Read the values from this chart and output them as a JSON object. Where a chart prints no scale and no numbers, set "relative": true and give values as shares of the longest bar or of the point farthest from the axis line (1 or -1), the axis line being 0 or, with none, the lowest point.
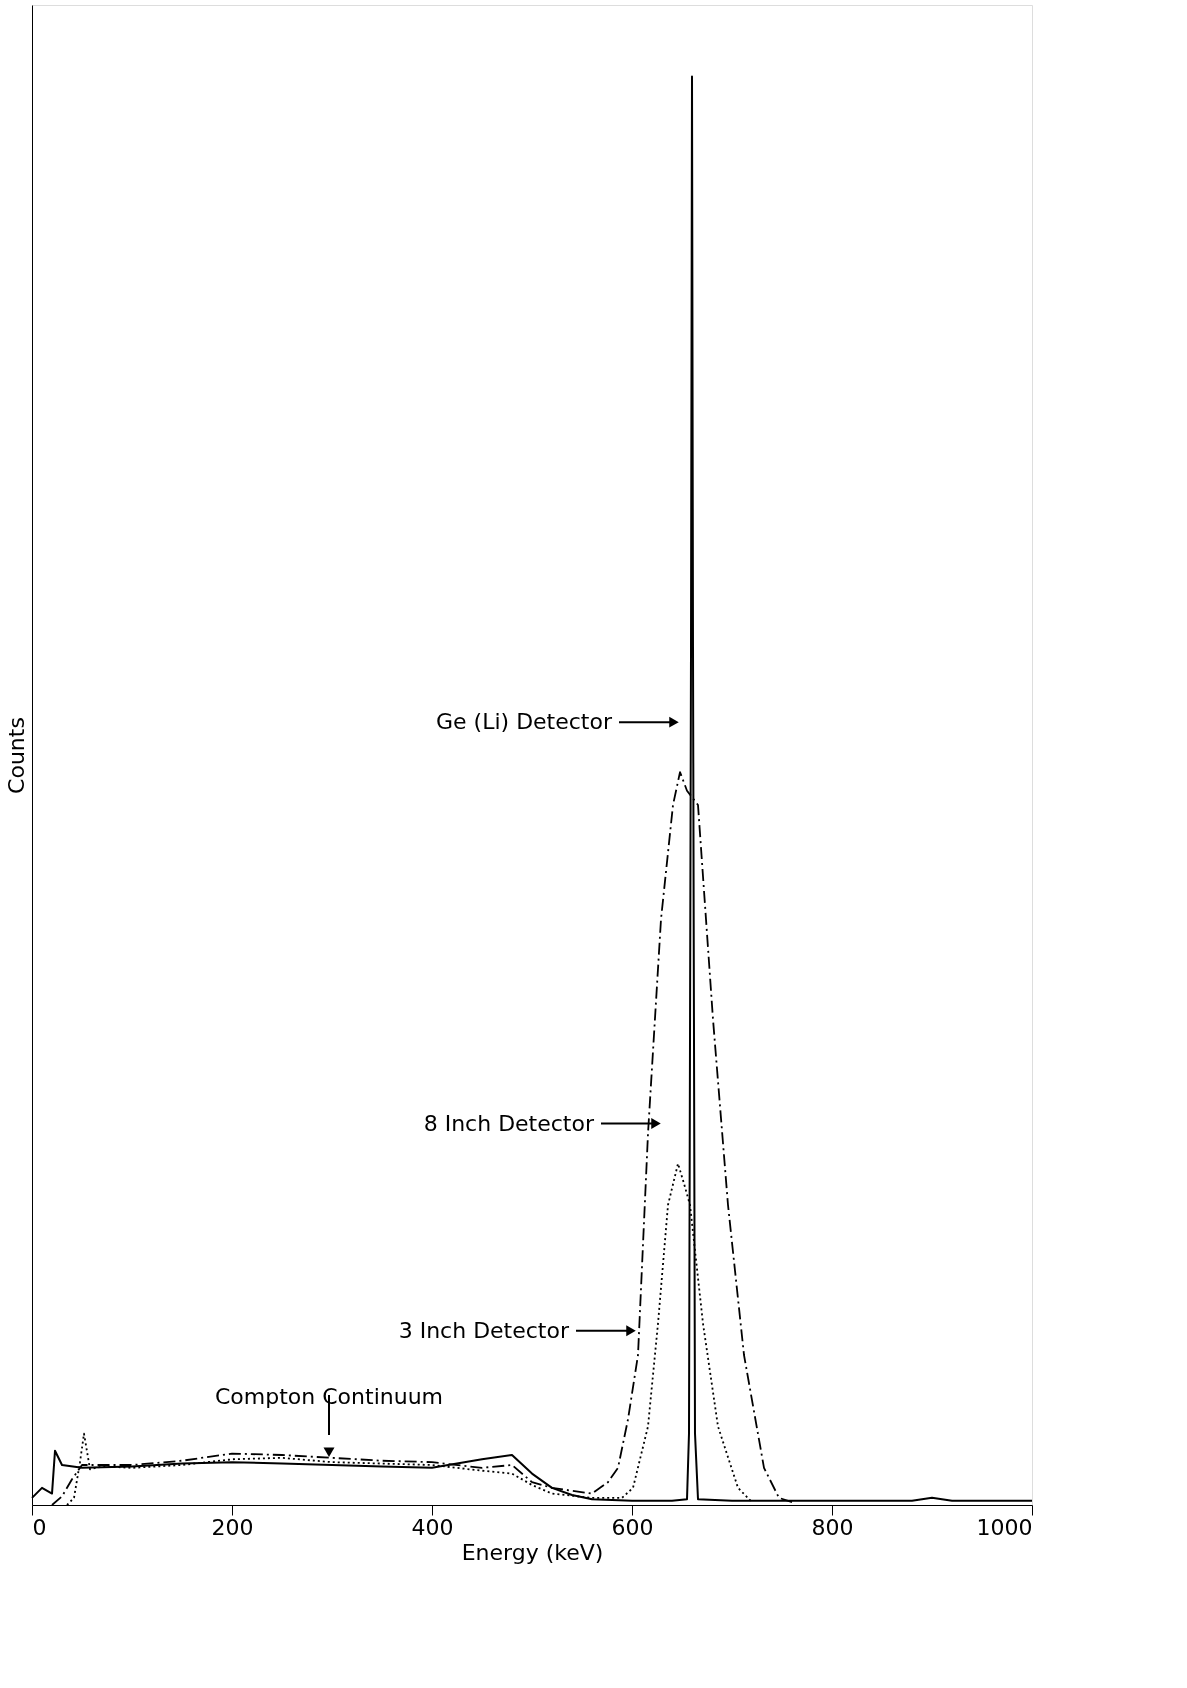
{
  "chart_data": {
    "type": "line",
    "relative": true,
    "xlabel": "Energy (keV)",
    "ylabel": "Counts",
    "xlim": [
      0,
      1000
    ],
    "xticks": [
      0,
      200,
      400,
      600,
      800,
      1000
    ],
    "grid": false,
    "marker": "none",
    "series": [
      {
        "color": "#000000",
        "line_style": "solid",
        "x": [
          0,
          10,
          20,
          23,
          30,
          50,
          100,
          150,
          200,
          250,
          300,
          350,
          400,
          450,
          480,
          500,
          520,
          540,
          560,
          600,
          640,
          655,
          657,
          659,
          660,
          661,
          663,
          666,
          700,
          800,
          880,
          900,
          920,
          1000
        ],
        "values": [
          0.005,
          0.012,
          0.008,
          0.038,
          0.028,
          0.026,
          0.027,
          0.029,
          0.03,
          0.029,
          0.028,
          0.027,
          0.026,
          0.032,
          0.035,
          0.022,
          0.012,
          0.007,
          0.004,
          0.003,
          0.003,
          0.004,
          0.05,
          0.6,
          1.0,
          0.6,
          0.05,
          0.004,
          0.003,
          0.003,
          0.003,
          0.005,
          0.003,
          0.003
        ]
      },
      {
        "color": "#000000",
        "line_style": "dashed",
        "x": [
          20,
          30,
          40,
          50,
          100,
          150,
          200,
          250,
          300,
          350,
          400,
          450,
          480,
          500,
          520,
          560,
          576,
          586,
          596,
          606,
          616,
          629,
          641,
          648,
          655,
          666,
          681,
          696,
          712,
          732,
          747,
          760
        ],
        "values": [
          0.0,
          0.006,
          0.018,
          0.028,
          0.028,
          0.031,
          0.036,
          0.035,
          0.033,
          0.031,
          0.03,
          0.026,
          0.028,
          0.016,
          0.012,
          0.008,
          0.016,
          0.026,
          0.06,
          0.105,
          0.26,
          0.41,
          0.49,
          0.513,
          0.5,
          0.49,
          0.34,
          0.21,
          0.105,
          0.026,
          0.005,
          0.002
        ]
      },
      {
        "color": "#000000",
        "line_style": "dotted",
        "x": [
          35,
          42,
          48,
          52,
          58,
          70,
          100,
          150,
          200,
          250,
          300,
          350,
          400,
          450,
          480,
          500,
          520,
          560,
          590,
          601,
          616,
          626,
          636,
          646,
          652,
          658,
          671,
          686,
          706,
          720
        ],
        "values": [
          0.0,
          0.005,
          0.03,
          0.05,
          0.025,
          0.027,
          0.026,
          0.028,
          0.032,
          0.033,
          0.03,
          0.029,
          0.028,
          0.024,
          0.022,
          0.014,
          0.008,
          0.005,
          0.005,
          0.012,
          0.055,
          0.127,
          0.21,
          0.239,
          0.225,
          0.21,
          0.127,
          0.055,
          0.012,
          0.002
        ]
      }
    ],
    "annotations": [
      {
        "text": "Ge (Li) Detector",
        "x": 642,
        "y": 0.548
      },
      {
        "text": "8 Inch Detector",
        "x": 624,
        "y": 0.267
      },
      {
        "text": "3 Inch Detector",
        "x": 599,
        "y": 0.122
      },
      {
        "text": "Compton Continuum",
        "x": 297,
        "y": 0.037
      }
    ]
  }
}
